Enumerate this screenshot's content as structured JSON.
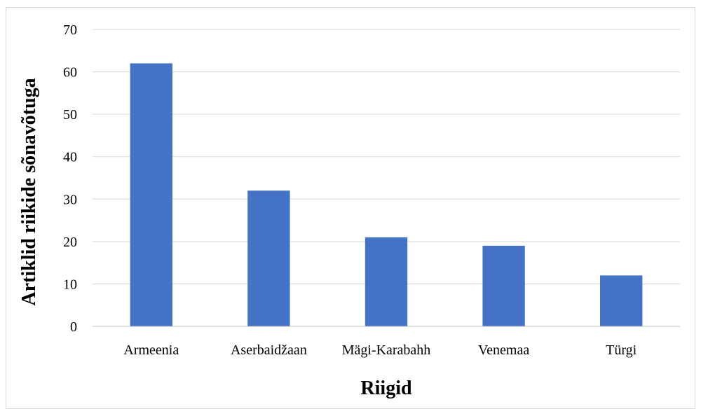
{
  "chart_data": {
    "type": "bar",
    "title": "",
    "xlabel": "Riigid",
    "ylabel": "Artiklid riikide sõnavõtuga",
    "categories": [
      "Armeenia",
      "Aserbaidžaan",
      "Mägi-Karabahh",
      "Venemaa",
      "Türgi"
    ],
    "values": [
      62,
      32,
      21,
      19,
      12
    ],
    "ylim": [
      0,
      70
    ],
    "yticks": [
      0,
      10,
      20,
      30,
      40,
      50,
      60,
      70
    ],
    "grid": true,
    "legend": "none",
    "colors": {
      "bar": "#4472C4",
      "grid": "#d9d9d9",
      "axis": "#bfbfbf"
    }
  }
}
